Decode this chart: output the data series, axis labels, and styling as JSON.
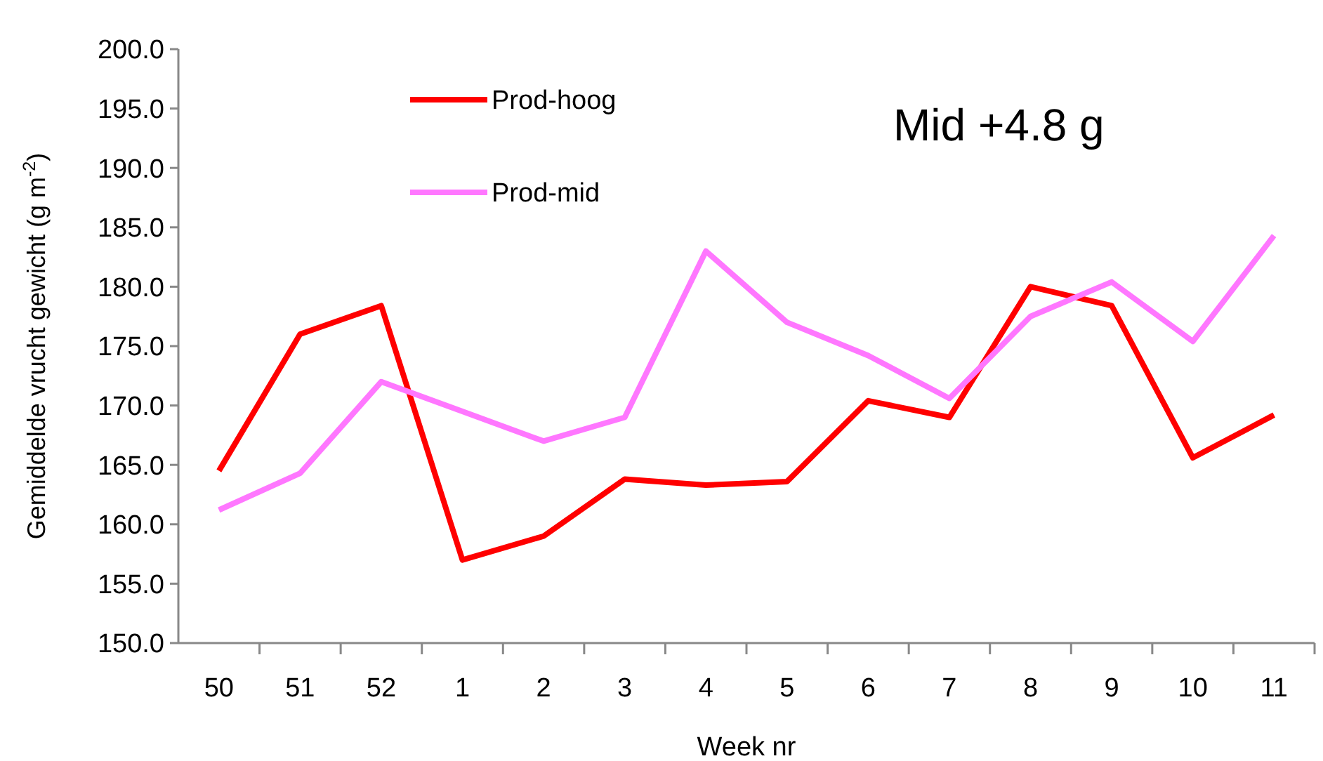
{
  "chart_data": {
    "type": "line",
    "xlabel": "Week nr",
    "ylabel": "Gemiddelde vrucht gewicht  (g m$^{-2}$)",
    "annotations": [
      "Mid +4.8 g"
    ],
    "categories": [
      "50",
      "51",
      "52",
      "1",
      "2",
      "3",
      "4",
      "5",
      "6",
      "7",
      "8",
      "9",
      "10",
      "11"
    ],
    "series": [
      {
        "name": "Prod-hoog",
        "color": "#ff0000",
        "values": [
          164.5,
          176,
          178.4,
          157,
          159,
          163.8,
          163.3,
          163.6,
          170.4,
          169,
          180,
          178.4,
          165.6,
          169.2
        ]
      },
      {
        "name": "Prod-mid",
        "color": "#ff77ff",
        "values": [
          161.2,
          164.3,
          172,
          169.5,
          167,
          169,
          183,
          177,
          174.2,
          170.6,
          177.5,
          180.4,
          175.4,
          184.3
        ]
      }
    ],
    "ylim": [
      150,
      200
    ],
    "yticks": [
      {
        "value": 150,
        "label": "150.0"
      },
      {
        "value": 155,
        "label": "155.0"
      },
      {
        "value": 160,
        "label": "160.0"
      },
      {
        "value": 165,
        "label": "165.0"
      },
      {
        "value": 170,
        "label": "170.0"
      },
      {
        "value": 175,
        "label": "175.0"
      },
      {
        "value": 180,
        "label": "180.0"
      },
      {
        "value": 185,
        "label": "185.0"
      },
      {
        "value": 190,
        "label": "190.0"
      },
      {
        "value": 195,
        "label": "195.0"
      },
      {
        "value": 200,
        "label": "200.0"
      }
    ],
    "legend": "top left",
    "marker": "none",
    "line_style": "solid"
  }
}
